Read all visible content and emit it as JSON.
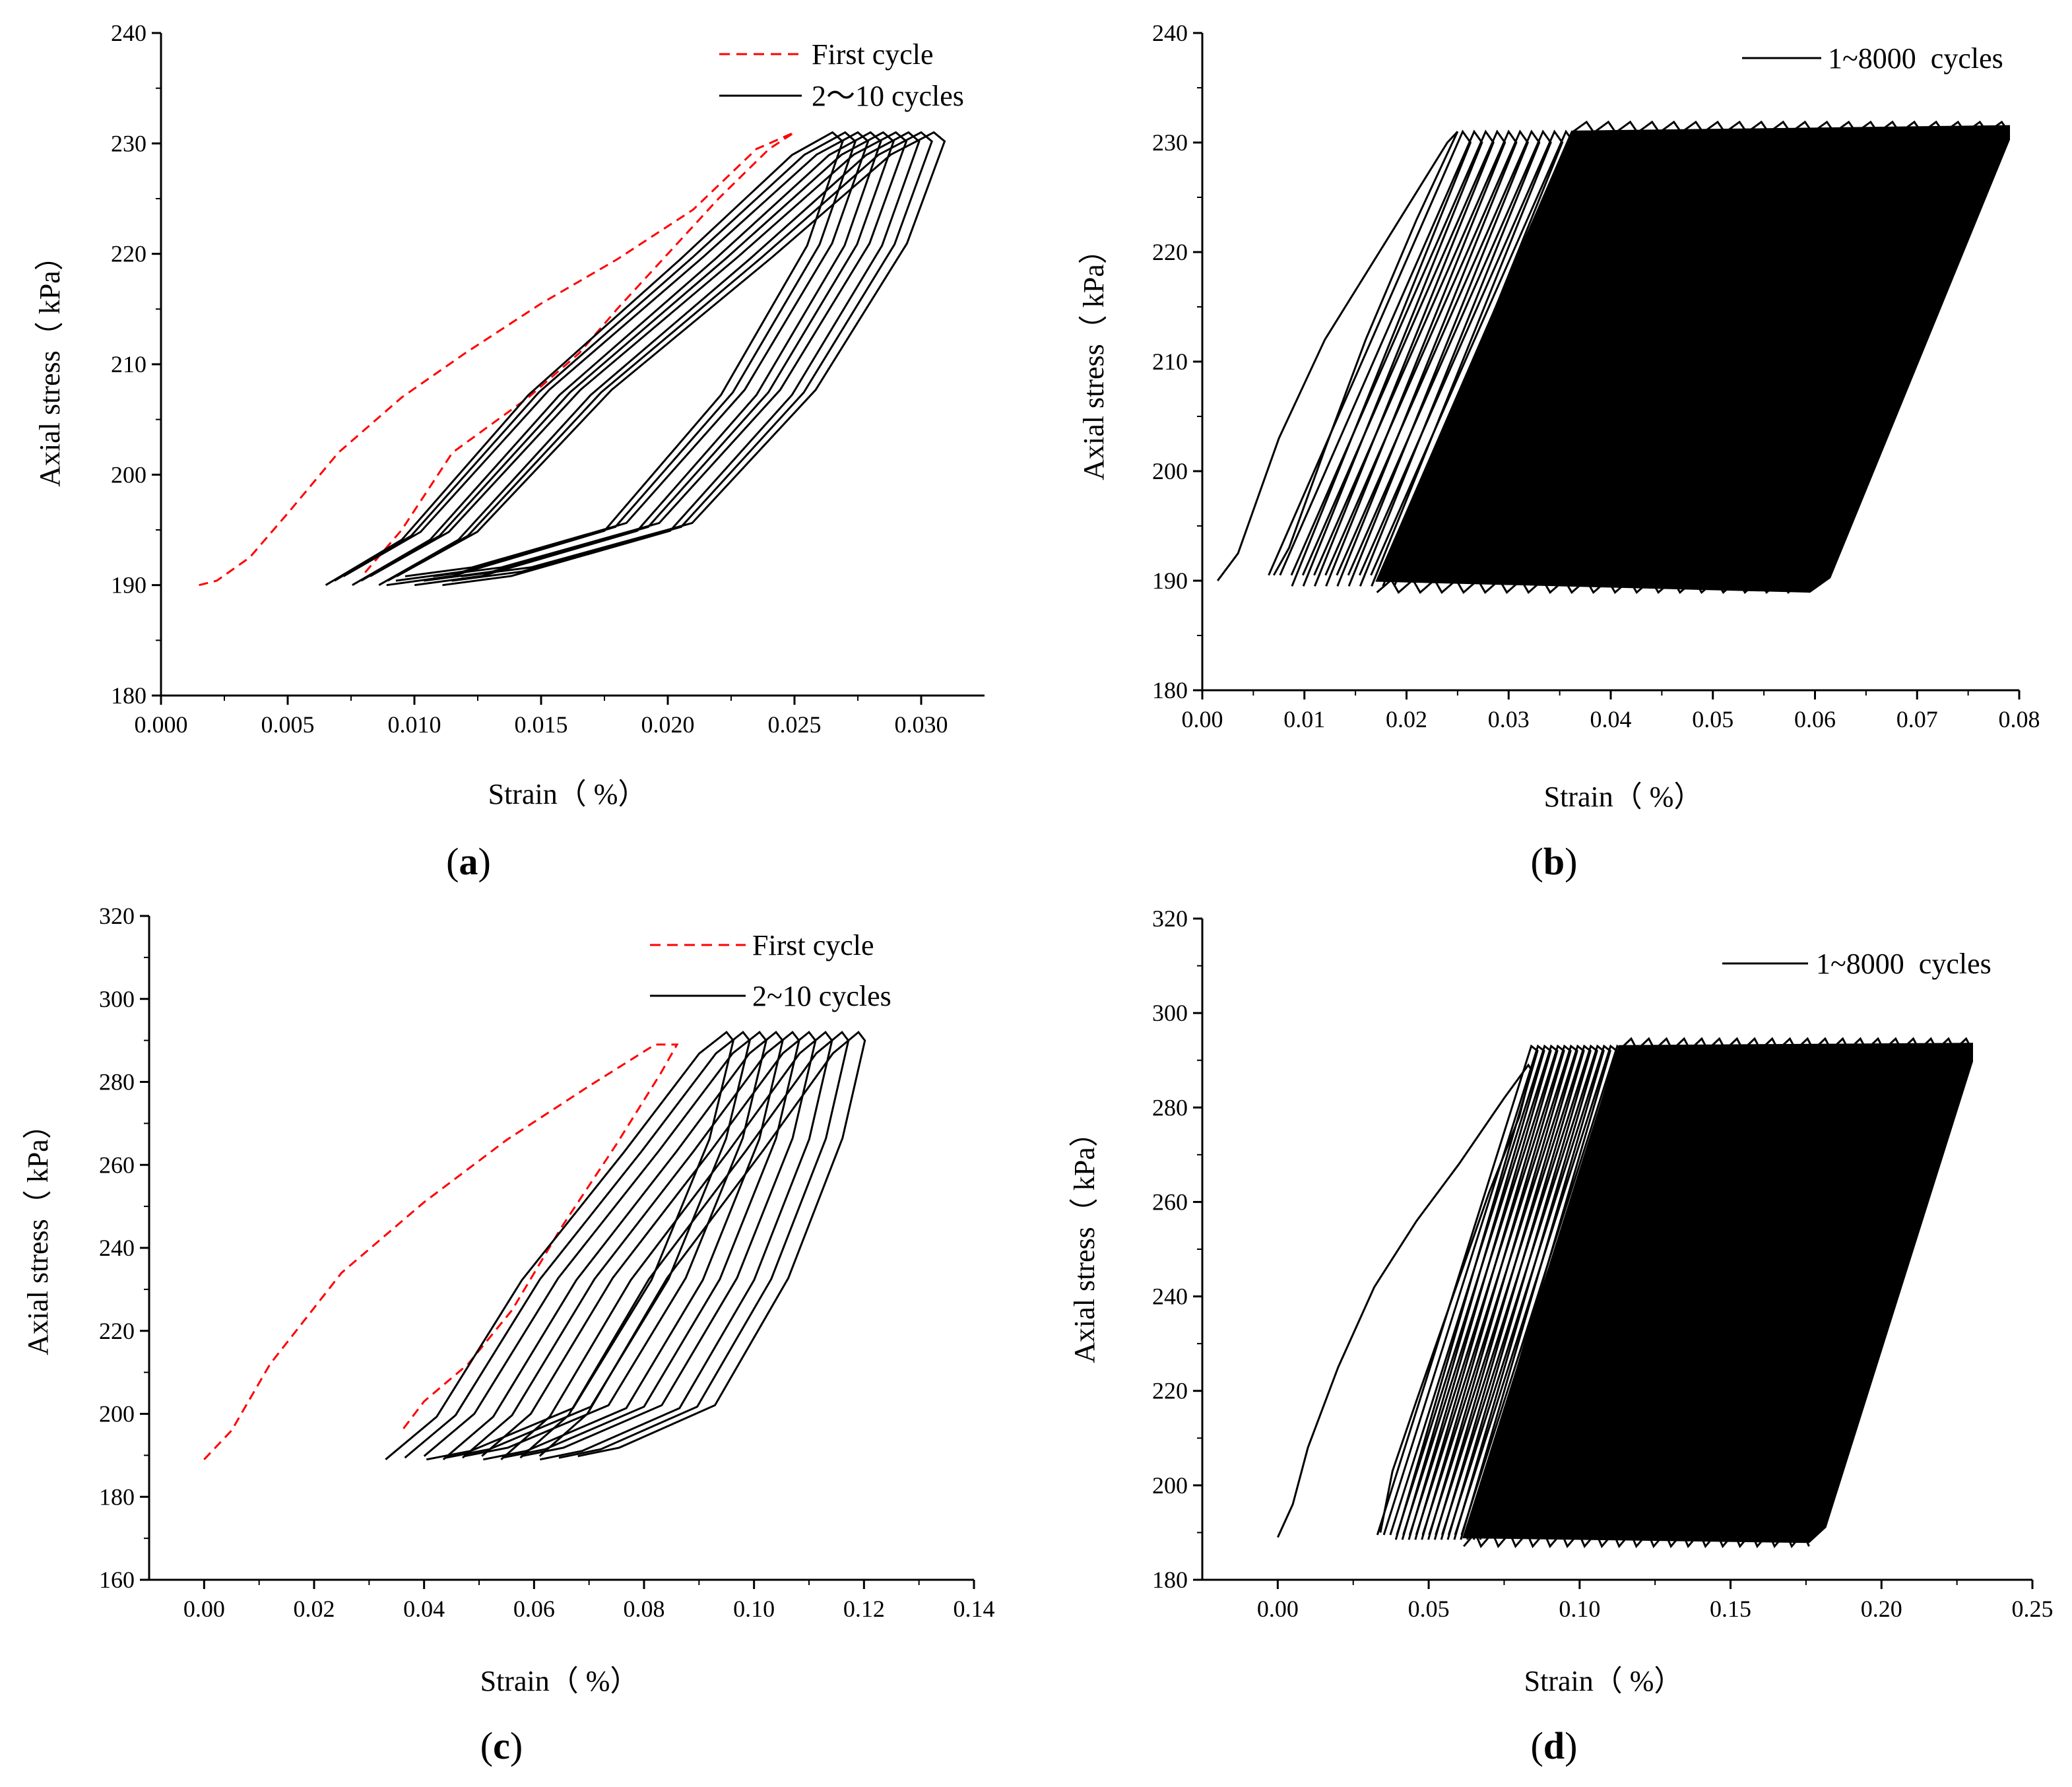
{
  "figure": {
    "panels": [
      {
        "id": "a",
        "label": "a"
      },
      {
        "id": "b",
        "label": "b"
      },
      {
        "id": "c",
        "label": "c"
      },
      {
        "id": "d",
        "label": "d"
      }
    ]
  },
  "chart_data": [
    {
      "panel": "a",
      "type": "line",
      "title": "",
      "xlabel": "Strain（ %）",
      "ylabel": "Axial stress（ kPa）",
      "xlim": [
        0.0,
        0.0325
      ],
      "ylim": [
        180,
        240
      ],
      "xticks": [
        0.0,
        0.005,
        0.01,
        0.015,
        0.02,
        0.025,
        0.03
      ],
      "xtick_labels": [
        "0.000",
        "0.005",
        "0.010",
        "0.015",
        "0.020",
        "0.025",
        "0.030"
      ],
      "yticks": [
        180,
        190,
        200,
        210,
        220,
        230,
        240
      ],
      "ytick_labels": [
        "180",
        "190",
        "200",
        "210",
        "220",
        "230",
        "240"
      ],
      "legend_position": "top-right",
      "colors": {
        "first_cycle": "#ff0000",
        "cycles": "#000000"
      },
      "series": [
        {
          "name": "First cycle",
          "style": "dashed",
          "color": "#ff0000",
          "x": [
            0.0015,
            0.0022,
            0.0035,
            0.005,
            0.007,
            0.0095,
            0.012,
            0.015,
            0.018,
            0.021,
            0.0235,
            0.025,
            0.024,
            0.022,
            0.02,
            0.018,
            0.0165,
            0.0145,
            0.0115,
            0.0095,
            0.008
          ],
          "y": [
            190,
            190.4,
            192.5,
            196.5,
            202,
            207,
            211,
            215.5,
            219.5,
            224,
            229.5,
            231,
            229.5,
            225,
            220,
            215,
            211,
            207,
            202,
            195,
            191
          ]
        },
        {
          "name": "2〜10 cycles",
          "style": "solid",
          "color": "#000000",
          "count": 9,
          "start_x": 0.0065,
          "start_step": 0.00035,
          "peak_x": 0.0265,
          "peak_step": 0.0005,
          "min_y": 190,
          "max_y": 231
        }
      ]
    },
    {
      "panel": "b",
      "type": "line",
      "title": "",
      "xlabel": "Strain（ %）",
      "ylabel": "Axial stress（ kPa）",
      "xlim": [
        0.0,
        0.08
      ],
      "ylim": [
        180,
        240
      ],
      "xticks": [
        0.0,
        0.01,
        0.02,
        0.03,
        0.04,
        0.05,
        0.06,
        0.07,
        0.08
      ],
      "xtick_labels": [
        "0.00",
        "0.01",
        "0.02",
        "0.03",
        "0.04",
        "0.05",
        "0.06",
        "0.07",
        "0.08"
      ],
      "yticks": [
        180,
        190,
        200,
        210,
        220,
        230,
        240
      ],
      "ytick_labels": [
        "180",
        "190",
        "200",
        "210",
        "220",
        "230",
        "240"
      ],
      "legend_position": "top-right",
      "series": [
        {
          "name": "1~8000  cycles",
          "style": "solid",
          "color": "#000000",
          "first_loop": {
            "x": [
              0.0015,
              0.0035,
              0.0075,
              0.012,
              0.018,
              0.024,
              0.025,
              0.021,
              0.016,
              0.012,
              0.0085,
              0.007
            ],
            "y": [
              190,
              192.5,
              203,
              212,
              221,
              230,
              231,
              223,
              212,
              202,
              193,
              190.5
            ]
          },
          "band": {
            "left_bottom_x": 0.0065,
            "right_bottom_x": 0.0595,
            "left_top_x": 0.0255,
            "right_top_x": 0.079,
            "min_y": 189,
            "max_y": 232
          }
        }
      ]
    },
    {
      "panel": "c",
      "type": "line",
      "title": "",
      "xlabel": "Strain（ %）",
      "ylabel": "Axial stress（ kPa）",
      "xlim": [
        -0.01,
        0.14
      ],
      "ylim": [
        160,
        320
      ],
      "xticks": [
        0.0,
        0.02,
        0.04,
        0.06,
        0.08,
        0.1,
        0.12,
        0.14
      ],
      "xtick_labels": [
        "0.00",
        "0.02",
        "0.04",
        "0.06",
        "0.08",
        "0.10",
        "0.12",
        "0.14"
      ],
      "yticks": [
        160,
        180,
        200,
        220,
        240,
        260,
        280,
        300,
        320
      ],
      "ytick_labels": [
        "160",
        "180",
        "200",
        "220",
        "240",
        "260",
        "280",
        "300",
        "320"
      ],
      "legend_position": "top-right",
      "series": [
        {
          "name": "First cycle",
          "style": "dashed",
          "color": "#ff0000",
          "x": [
            0.0,
            0.005,
            0.012,
            0.025,
            0.04,
            0.055,
            0.07,
            0.082,
            0.086,
            0.083,
            0.075,
            0.065,
            0.056,
            0.048,
            0.04,
            0.036
          ],
          "y": [
            189,
            196,
            212,
            234,
            251,
            266,
            279,
            289,
            289,
            282,
            265,
            245,
            225,
            212,
            203,
            196
          ]
        },
        {
          "name": "2~10 cycles",
          "style": "solid",
          "color": "#000000",
          "count": 9,
          "start_x": 0.033,
          "start_step": 0.0035,
          "peak_x": 0.095,
          "peak_step": 0.003,
          "min_y": 189,
          "max_y": 292
        }
      ]
    },
    {
      "panel": "d",
      "type": "line",
      "title": "",
      "xlabel": "Strain（ %）",
      "ylabel": "Axial stress（ kPa）",
      "xlim": [
        -0.025,
        0.25
      ],
      "ylim": [
        180,
        320
      ],
      "xticks": [
        0.0,
        0.05,
        0.1,
        0.15,
        0.2,
        0.25
      ],
      "xtick_labels": [
        "0.00",
        "0.05",
        "0.10",
        "0.15",
        "0.20",
        "0.25"
      ],
      "yticks": [
        180,
        200,
        220,
        240,
        260,
        280,
        300,
        320
      ],
      "ytick_labels": [
        "180",
        "200",
        "220",
        "240",
        "260",
        "280",
        "300",
        "320"
      ],
      "legend_position": "top-right",
      "series": [
        {
          "name": "1~8000  cycles",
          "style": "solid",
          "color": "#000000",
          "first_loop": {
            "x": [
              0.0,
              0.005,
              0.01,
              0.02,
              0.032,
              0.046,
              0.06,
              0.075,
              0.083,
              0.084,
              0.08,
              0.07,
              0.058,
              0.046,
              0.038,
              0.034
            ],
            "y": [
              189,
              196,
              208,
              225,
              242,
              256,
              268,
              282,
              289,
              288,
              278,
              262,
              240,
              218,
              203,
              190
            ]
          },
          "band": {
            "left_bottom_x": 0.033,
            "right_bottom_x": 0.176,
            "left_top_x": 0.084,
            "right_top_x": 0.23,
            "min_y": 188,
            "max_y": 294
          },
          "sparse_loops": 14
        }
      ]
    }
  ]
}
